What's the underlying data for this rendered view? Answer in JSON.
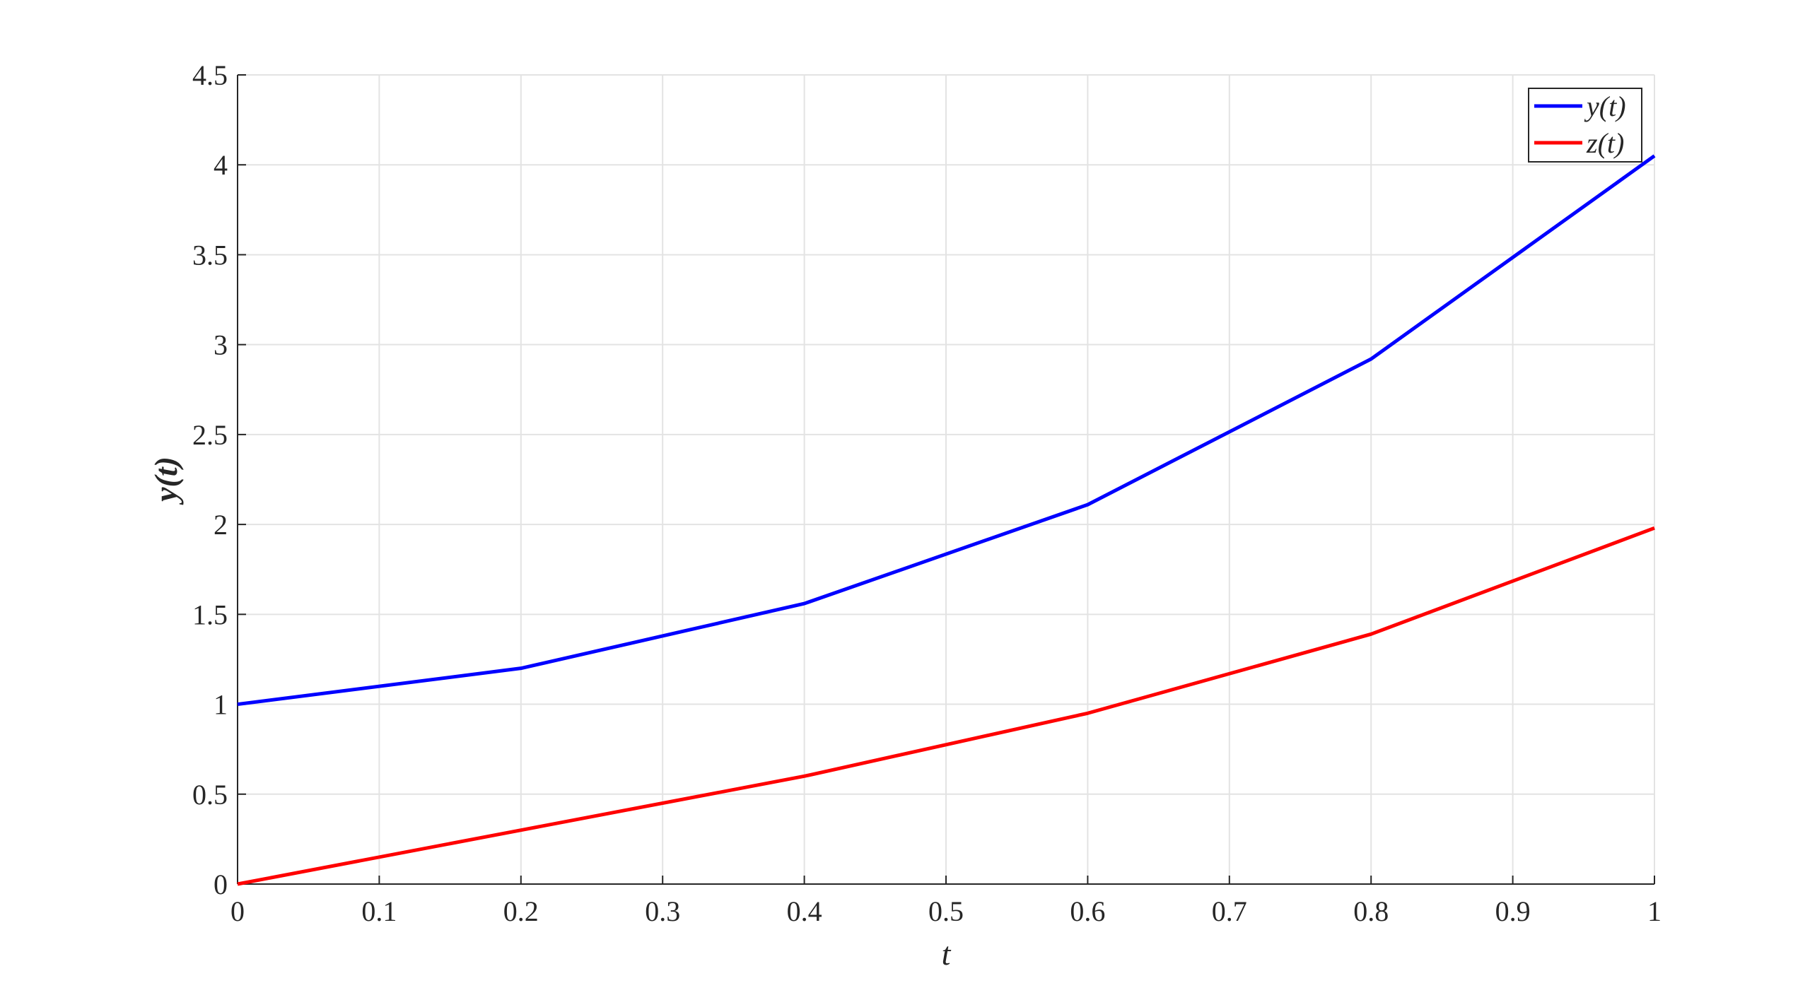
{
  "chart_data": {
    "type": "line",
    "xlabel": "t",
    "ylabel": "y(t)",
    "xlim": [
      0,
      1
    ],
    "ylim": [
      0,
      4.5
    ],
    "xticks": [
      "0",
      "0.1",
      "0.2",
      "0.3",
      "0.4",
      "0.5",
      "0.6",
      "0.7",
      "0.8",
      "0.9",
      "1"
    ],
    "yticks": [
      "0",
      "0.5",
      "1",
      "1.5",
      "2",
      "2.5",
      "3",
      "3.5",
      "4",
      "4.5"
    ],
    "grid": true,
    "legend_position": "top-right",
    "x": [
      0,
      0.2,
      0.4,
      0.6,
      0.8,
      1.0
    ],
    "series": [
      {
        "name": "y(t)",
        "color": "#0000ff",
        "values": [
          1.0,
          1.2,
          1.56,
          2.11,
          2.92,
          4.05
        ]
      },
      {
        "name": "z(t)",
        "color": "#ff0000",
        "values": [
          0.0,
          0.3,
          0.6,
          0.95,
          1.39,
          1.98
        ]
      }
    ]
  }
}
